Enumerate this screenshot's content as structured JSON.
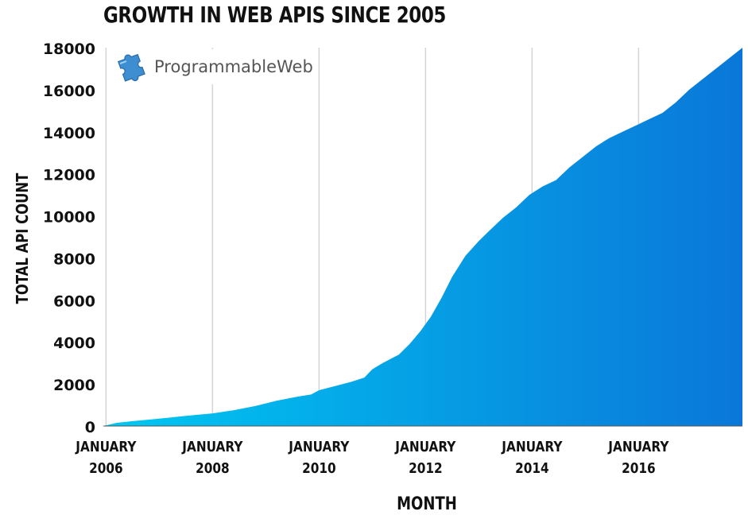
{
  "chart_data": {
    "type": "area",
    "title": "GROWTH IN WEB APIS SINCE 2005",
    "xlabel": "MONTH",
    "ylabel": "TOTAL API COUNT",
    "ylim": [
      0,
      18000
    ],
    "yticks": [
      0,
      2000,
      4000,
      6000,
      8000,
      10000,
      12000,
      14000,
      16000,
      18000
    ],
    "xticks": [
      {
        "x": 2006.0,
        "line1": "JANUARY",
        "line2": "2006"
      },
      {
        "x": 2008.0,
        "line1": "JANUARY",
        "line2": "2008"
      },
      {
        "x": 2010.0,
        "line1": "JANUARY",
        "line2": "2010"
      },
      {
        "x": 2012.0,
        "line1": "JANUARY",
        "line2": "2012"
      },
      {
        "x": 2014.0,
        "line1": "JANUARY",
        "line2": "2014"
      },
      {
        "x": 2016.0,
        "line1": "JANUARY",
        "line2": "2016"
      }
    ],
    "xlim": [
      2005.95,
      2017.95
    ],
    "grid": true,
    "series": [
      {
        "color_start": "#00c8f2",
        "color_end": "#0a77d8",
        "x": [
          2005.95,
          2006.2,
          2006.5,
          2007.0,
          2007.5,
          2008.0,
          2008.4,
          2008.8,
          2009.2,
          2009.6,
          2009.85,
          2010.0,
          2010.3,
          2010.6,
          2010.85,
          2011.0,
          2011.2,
          2011.5,
          2011.7,
          2011.9,
          2012.1,
          2012.3,
          2012.5,
          2012.75,
          2013.0,
          2013.2,
          2013.45,
          2013.7,
          2013.95,
          2014.2,
          2014.45,
          2014.7,
          2014.95,
          2015.2,
          2015.45,
          2015.7,
          2015.95,
          2016.2,
          2016.45,
          2016.7,
          2016.95,
          2017.2,
          2017.45,
          2017.7,
          2017.95
        ],
        "values": [
          0,
          150,
          230,
          350,
          480,
          600,
          750,
          950,
          1200,
          1400,
          1500,
          1700,
          1900,
          2100,
          2300,
          2700,
          3000,
          3400,
          3900,
          4500,
          5200,
          6100,
          7100,
          8100,
          8800,
          9300,
          9900,
          10400,
          11000,
          11400,
          11700,
          12300,
          12800,
          13300,
          13700,
          14000,
          14300,
          14600,
          14900,
          15400,
          16000,
          16500,
          17000,
          17500,
          18000
        ]
      }
    ]
  },
  "logo": {
    "text": "ProgrammableWeb",
    "icon": "puzzle-piece-icon"
  }
}
